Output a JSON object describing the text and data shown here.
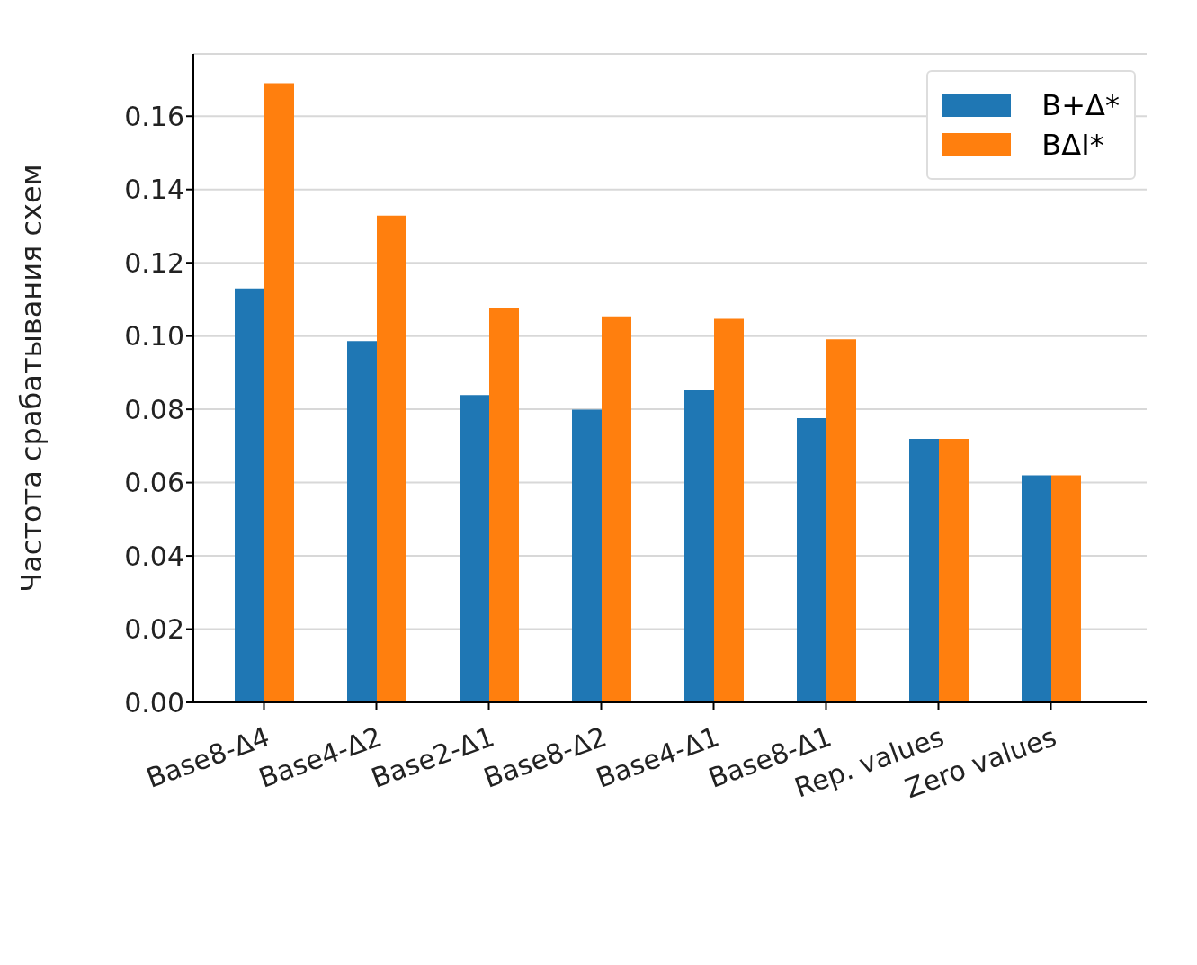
{
  "chart_data": {
    "type": "bar",
    "ylabel": "Частота срабатывания схем",
    "categories": [
      "Base8-Δ4",
      "Base4-Δ2",
      "Base2-Δ1",
      "Base8-Δ2",
      "Base4-Δ1",
      "Base8-Δ1",
      "Rep. values",
      "Zero values"
    ],
    "series": [
      {
        "name": "B+Δ*",
        "color": "#1f77b4",
        "values": [
          0.113,
          0.0986,
          0.0839,
          0.0799,
          0.0852,
          0.0776,
          0.0719,
          0.062
        ]
      },
      {
        "name": "BΔI*",
        "color": "#ff7f0e",
        "values": [
          0.169,
          0.1329,
          0.1075,
          0.1054,
          0.1047,
          0.0991,
          0.0719,
          0.062
        ]
      }
    ],
    "ylim": [
      0,
      0.177
    ],
    "yticks": [
      {
        "value": 0,
        "label": "0.00"
      },
      {
        "value": 0.02,
        "label": "0.02"
      },
      {
        "value": 0.04,
        "label": "0.04"
      },
      {
        "value": 0.06,
        "label": "0.06"
      },
      {
        "value": 0.08,
        "label": "0.08"
      },
      {
        "value": 0.1,
        "label": "0.10"
      },
      {
        "value": 0.12,
        "label": "0.12"
      },
      {
        "value": 0.14,
        "label": "0.14"
      },
      {
        "value": 0.16,
        "label": "0.16"
      }
    ],
    "grid": "y",
    "legend": "top right"
  }
}
